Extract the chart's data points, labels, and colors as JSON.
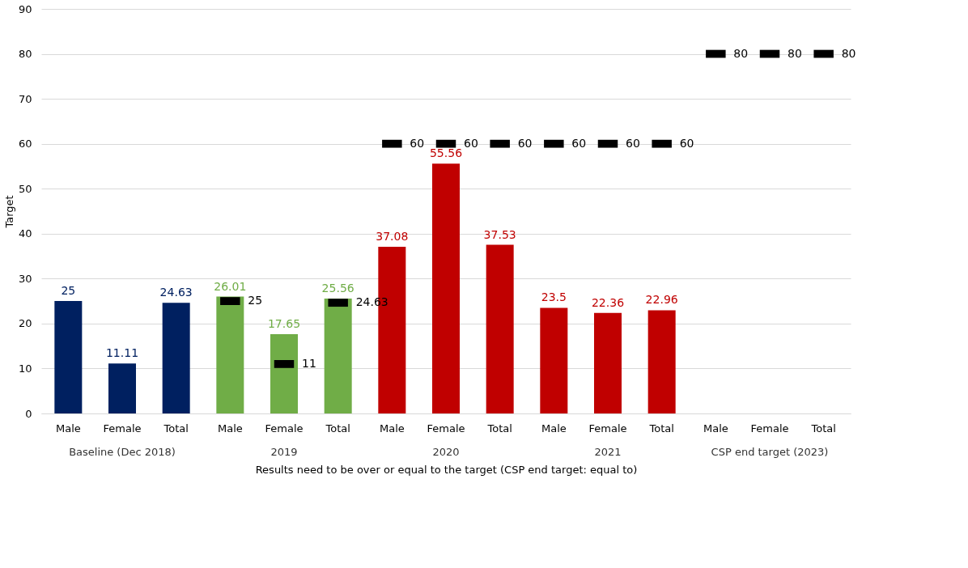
{
  "chart_data": {
    "type": "bar",
    "ylabel": "Target",
    "xlabel": "Results need to be over or equal to the target (CSP end target: equal to)",
    "categories": [
      "Male",
      "Female",
      "Total",
      "Male",
      "Female",
      "Total",
      "Male",
      "Female",
      "Total",
      "Male",
      "Female",
      "Total",
      "Male",
      "Female",
      "Total"
    ],
    "annotations": [
      "Baseline (Dec 2018)",
      "2019",
      "2020",
      "2021",
      "CSP end target (2023)"
    ],
    "series": [
      {
        "colors": [
          "#002060",
          "#002060",
          "#002060",
          "#70ad47",
          "#70ad47",
          "#70ad47",
          "#c00000",
          "#c00000",
          "#c00000",
          "#c00000",
          "#c00000",
          "#c00000",
          null,
          null,
          null
        ],
        "values": [
          25,
          11.11,
          24.63,
          26.01,
          17.65,
          25.56,
          37.08,
          55.56,
          37.53,
          23.5,
          22.36,
          22.96,
          null,
          null,
          null
        ]
      },
      {
        "type": "scatter",
        "color": "#000000",
        "values": [
          null,
          null,
          null,
          25,
          11,
          24.63,
          60,
          60,
          60,
          60,
          60,
          60,
          80,
          80,
          80
        ]
      }
    ],
    "data_labels": true,
    "ylim": [
      0,
      90
    ],
    "yticks": [
      0,
      10,
      20,
      30,
      40,
      50,
      60,
      70,
      80,
      90
    ],
    "grid": "y"
  }
}
